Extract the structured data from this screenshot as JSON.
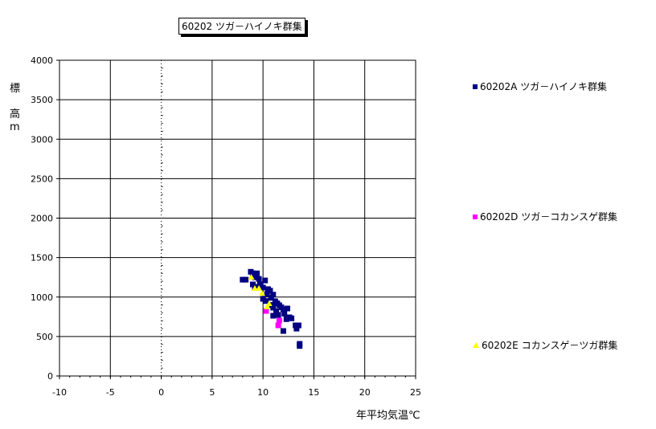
{
  "chart_data": {
    "type": "scatter",
    "title": "60202 ツガ－ハイノキ群集",
    "xlabel": "年平均気温℃",
    "ylabel": [
      "標",
      "高",
      "m"
    ],
    "xlim": [
      -10,
      25
    ],
    "ylim": [
      0,
      4000
    ],
    "xticks": [
      -10,
      -5,
      0,
      5,
      10,
      15,
      20,
      25
    ],
    "yticks": [
      0,
      500,
      1000,
      1500,
      2000,
      2500,
      3000,
      3500,
      4000
    ],
    "grid": true,
    "legend_placement": "right",
    "series": [
      {
        "name": "60202A ツガ－ハイノキ群集",
        "marker": "square",
        "color": "#000080",
        "points": [
          [
            8.0,
            1220
          ],
          [
            8.3,
            1220
          ],
          [
            8.8,
            1320
          ],
          [
            9.0,
            1300
          ],
          [
            9.4,
            1300
          ],
          [
            9.2,
            1250
          ],
          [
            9.0,
            1160
          ],
          [
            9.6,
            1230
          ],
          [
            10.2,
            1210
          ],
          [
            9.7,
            1160
          ],
          [
            9.2,
            1130
          ],
          [
            10.0,
            1120
          ],
          [
            10.5,
            1100
          ],
          [
            10.7,
            1080
          ],
          [
            10.4,
            1040
          ],
          [
            11.0,
            1030
          ],
          [
            10.8,
            990
          ],
          [
            10.0,
            977
          ],
          [
            10.3,
            950
          ],
          [
            11.2,
            947
          ],
          [
            11.4,
            920
          ],
          [
            10.9,
            900
          ],
          [
            11.6,
            896
          ],
          [
            11.0,
            865
          ],
          [
            11.8,
            870
          ],
          [
            12.0,
            845
          ],
          [
            12.4,
            855
          ],
          [
            11.3,
            820
          ],
          [
            11.5,
            774
          ],
          [
            12.1,
            790
          ],
          [
            12.6,
            743
          ],
          [
            11.0,
            763
          ],
          [
            12.3,
            720
          ],
          [
            12.8,
            730
          ],
          [
            13.2,
            641
          ],
          [
            13.5,
            641
          ],
          [
            13.3,
            600
          ],
          [
            12.0,
            570
          ],
          [
            13.6,
            407
          ],
          [
            13.6,
            380
          ]
        ]
      },
      {
        "name": "60202D ツガ－コカンスゲ群集",
        "marker": "square",
        "color": "#ff00ff",
        "points": [
          [
            10.3,
            824
          ],
          [
            11.6,
            702
          ],
          [
            11.5,
            641
          ]
        ]
      },
      {
        "name": "60202E コカンスゲ－ツガ群集",
        "marker": "triangle",
        "color": "#ffff00",
        "points": [
          [
            8.85,
            1252
          ],
          [
            9.2,
            1110
          ],
          [
            9.6,
            1110
          ],
          [
            9.9,
            1048
          ],
          [
            10.6,
            916
          ],
          [
            10.4,
            875
          ]
        ]
      }
    ]
  }
}
